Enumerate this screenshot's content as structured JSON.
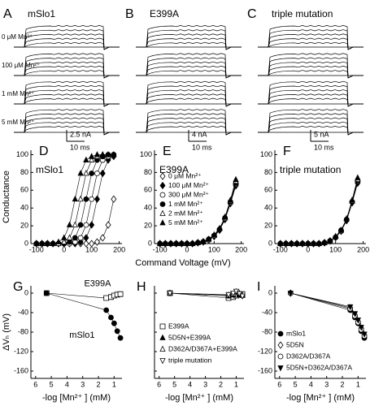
{
  "traces": {
    "panels": [
      {
        "panel": "A",
        "title": "mSlo1",
        "scale_current": "2.5 nA",
        "scale_time": "10 ms"
      },
      {
        "panel": "B",
        "title": "E399A",
        "scale_current": "4 nA",
        "scale_time": "10 ms"
      },
      {
        "panel": "C",
        "title": "triple mutation",
        "scale_current": "5 nA",
        "scale_time": "10 ms"
      }
    ],
    "conditions": [
      "0 μM Mn²⁺",
      "100 μM Mn²⁺",
      "1 mM Mn²⁺",
      "5 mM Mn²⁺"
    ]
  },
  "chart_data": [
    {
      "type": "scatter",
      "panel": "D",
      "title": "mSlo1",
      "y_label": "Conductance",
      "x": [
        -100,
        -80,
        -60,
        -40,
        -20,
        0,
        20,
        40,
        60,
        80,
        100,
        120,
        140,
        160,
        180
      ],
      "xlim": [
        -120,
        210
      ],
      "xticks": [
        -100,
        0,
        100,
        200
      ],
      "ylim": [
        0,
        105
      ],
      "yticks": [
        0,
        20,
        40,
        60,
        80,
        100
      ],
      "series": [
        {
          "marker": "diamond",
          "filled": false,
          "color": "#000",
          "values": [
            0,
            0,
            0,
            0,
            0,
            0,
            0,
            0,
            0,
            0,
            0,
            1.8,
            6.5,
            21,
            50
          ]
        },
        {
          "marker": "diamond",
          "filled": true,
          "color": "#000",
          "values": [
            0,
            0,
            0,
            0,
            0,
            0,
            0,
            0,
            1.8,
            6.5,
            21,
            50,
            79,
            94,
            98
          ]
        },
        {
          "marker": "circle",
          "filled": false,
          "color": "#000",
          "values": [
            0,
            0,
            0,
            0,
            0,
            0,
            0,
            1.8,
            6.5,
            21,
            50,
            79,
            94,
            98,
            100
          ]
        },
        {
          "marker": "circle",
          "filled": true,
          "color": "#000",
          "values": [
            0,
            0,
            0,
            0,
            0,
            0,
            1.8,
            6.5,
            21,
            50,
            79,
            94,
            98,
            100,
            100
          ]
        },
        {
          "marker": "triangle",
          "filled": false,
          "color": "#000",
          "values": [
            0,
            0,
            0,
            0,
            0,
            1.8,
            6.5,
            21,
            50,
            79,
            94,
            98,
            100,
            100,
            100
          ]
        },
        {
          "marker": "triangle",
          "filled": true,
          "color": "#000",
          "values": [
            0,
            0,
            0,
            0,
            1.8,
            6.5,
            21,
            50,
            79,
            94,
            98,
            100,
            100,
            100,
            100
          ]
        }
      ]
    },
    {
      "type": "scatter",
      "panel": "E",
      "title": "E399A",
      "x_label": "Command Voltage (mV)",
      "legend": true,
      "x": [
        -100,
        -80,
        -60,
        -40,
        -20,
        0,
        20,
        40,
        60,
        80,
        100,
        120,
        140,
        160,
        180
      ],
      "xlim": [
        -120,
        210
      ],
      "xticks": [
        -100,
        0,
        100,
        200
      ],
      "ylim": [
        0,
        105
      ],
      "yticks": [
        0,
        20,
        40,
        60,
        80,
        100
      ],
      "series": [
        {
          "name": "0 μM Mn²⁺",
          "marker": "diamond",
          "filled": false,
          "color": "#000",
          "values": [
            0,
            0,
            0,
            0,
            0,
            0,
            0,
            1,
            2,
            4,
            8,
            15,
            27,
            45,
            65
          ]
        },
        {
          "name": "100 μM Mn²⁺",
          "marker": "diamond",
          "filled": true,
          "color": "#000",
          "values": [
            0,
            0,
            0,
            0,
            0,
            0,
            0,
            1,
            2,
            4,
            8,
            16,
            28,
            46,
            66
          ]
        },
        {
          "name": "300 μM Mn²⁺",
          "marker": "circle",
          "filled": false,
          "color": "#000",
          "values": [
            0,
            0,
            0,
            0,
            0,
            0,
            0,
            1,
            2,
            4,
            9,
            16,
            28,
            46,
            67
          ]
        },
        {
          "name": "1 mM Mn²⁺",
          "marker": "circle",
          "filled": true,
          "color": "#000",
          "values": [
            0,
            0,
            0,
            0,
            0,
            0,
            0,
            1,
            2,
            5,
            9,
            16,
            29,
            47,
            68
          ]
        },
        {
          "name": "2 mM Mn²⁺",
          "marker": "triangle",
          "filled": false,
          "color": "#000",
          "values": [
            0,
            0,
            0,
            0,
            0,
            0,
            0,
            1,
            2,
            5,
            9,
            17,
            29,
            48,
            70
          ]
        },
        {
          "name": "5 mM Mn²⁺",
          "marker": "triangle",
          "filled": true,
          "color": "#000",
          "values": [
            0,
            0,
            0,
            0,
            0,
            0,
            0,
            1,
            2,
            5,
            10,
            17,
            30,
            49,
            72
          ]
        }
      ]
    },
    {
      "type": "scatter",
      "panel": "F",
      "title": "triple mutation",
      "x": [
        -100,
        -80,
        -60,
        -40,
        -20,
        0,
        20,
        40,
        60,
        80,
        100,
        120,
        140,
        160,
        180
      ],
      "xlim": [
        -120,
        210
      ],
      "xticks": [
        -100,
        0,
        100,
        200
      ],
      "ylim": [
        0,
        105
      ],
      "yticks": [
        0,
        20,
        40,
        60,
        80,
        100
      ],
      "series": [
        {
          "marker": "diamond",
          "filled": false,
          "color": "#000",
          "values": [
            0,
            0,
            0,
            0,
            0,
            0,
            0,
            0,
            1,
            3,
            7,
            14,
            26,
            46,
            68
          ]
        },
        {
          "marker": "diamond",
          "filled": true,
          "color": "#000",
          "values": [
            0,
            0,
            0,
            0,
            0,
            0,
            0,
            0,
            1,
            3,
            7,
            14,
            26,
            46,
            69
          ]
        },
        {
          "marker": "circle",
          "filled": false,
          "color": "#000",
          "values": [
            0,
            0,
            0,
            0,
            0,
            0,
            0,
            0,
            1,
            3,
            7,
            14,
            27,
            47,
            70
          ]
        },
        {
          "marker": "circle",
          "filled": true,
          "color": "#000",
          "values": [
            0,
            0,
            0,
            0,
            0,
            0,
            0,
            0,
            1,
            3,
            7,
            15,
            27,
            47,
            71
          ]
        },
        {
          "marker": "triangle",
          "filled": false,
          "color": "#000",
          "values": [
            0,
            0,
            0,
            0,
            0,
            0,
            0,
            0,
            1,
            3,
            8,
            15,
            28,
            48,
            72
          ]
        },
        {
          "marker": "triangle",
          "filled": true,
          "color": "#000",
          "values": [
            0,
            0,
            0,
            0,
            0,
            0,
            0,
            0,
            1,
            3,
            8,
            15,
            28,
            49,
            74
          ]
        }
      ]
    },
    {
      "type": "scatter",
      "panel": "G",
      "y_label": "ΔVₕ (mV)",
      "x_label": "-log [Mn²⁺ ] (mM)",
      "series_labels": true,
      "x": [
        5.3,
        1.5,
        1.2,
        1,
        0.8,
        0.6
      ],
      "xlim": [
        6.3,
        0.5
      ],
      "xticks": [
        6,
        5,
        4,
        3,
        2,
        1
      ],
      "ylim": [
        -175,
        15
      ],
      "yticks": [
        0,
        -40,
        -80,
        -120,
        -160
      ],
      "series": [
        {
          "name": "E399A",
          "marker": "square",
          "filled": false,
          "color": "#000",
          "values": [
            0,
            -10,
            -8,
            -5,
            -3,
            -2
          ]
        },
        {
          "name": "mSlo1",
          "marker": "circle",
          "filled": true,
          "color": "#000",
          "values": [
            0,
            -35,
            -50,
            -62,
            -78,
            -92
          ]
        }
      ]
    },
    {
      "type": "scatter",
      "panel": "H",
      "x_label": "-log [Mn²⁺ ] (mM)",
      "legend": true,
      "ytick_labels": false,
      "x": [
        5.3,
        1.5,
        1.2,
        1,
        0.8,
        0.6
      ],
      "xlim": [
        6.3,
        0.5
      ],
      "xticks": [
        6,
        5,
        4,
        3,
        2,
        1
      ],
      "ylim": [
        -175,
        15
      ],
      "yticks": [
        0,
        -40,
        -80,
        -120,
        -160
      ],
      "series": [
        {
          "name": "E399A",
          "marker": "square",
          "filled": false,
          "color": "#000",
          "values": [
            0,
            -10,
            -8,
            -5,
            -3,
            -2
          ]
        },
        {
          "name": "5D5N+E399A",
          "marker": "triangle",
          "filled": true,
          "color": "#000",
          "values": [
            0,
            -6,
            -4,
            2,
            -3,
            -5
          ]
        },
        {
          "name": "D362A/D367A+E399A",
          "marker": "triangle",
          "filled": false,
          "color": "#000",
          "values": [
            0,
            -4,
            -2,
            3,
            0,
            -4
          ]
        },
        {
          "name": "triple mutation",
          "marker": "triangle-down",
          "filled": false,
          "color": "#000",
          "values": [
            0,
            -3,
            0,
            4,
            -1,
            -6
          ]
        }
      ]
    },
    {
      "type": "scatter",
      "panel": "I",
      "x_label": "-log [Mn²⁺ ] (mM)",
      "legend": true,
      "x": [
        5.3,
        1.5,
        1.2,
        1,
        0.8,
        0.6
      ],
      "xlim": [
        6.3,
        0.5
      ],
      "xticks": [
        6,
        5,
        4,
        3,
        2,
        1
      ],
      "ylim": [
        -175,
        15
      ],
      "yticks": [
        0,
        -40,
        -80,
        -120,
        -160
      ],
      "series": [
        {
          "name": "mSlo1",
          "marker": "circle",
          "filled": true,
          "color": "#000",
          "values": [
            0,
            -35,
            -50,
            -62,
            -78,
            -92
          ]
        },
        {
          "name": "5D5N",
          "marker": "diamond",
          "filled": false,
          "color": "#000",
          "values": [
            0,
            -30,
            -45,
            -58,
            -72,
            -86
          ]
        },
        {
          "name": "D362A/D367A",
          "marker": "circle",
          "filled": false,
          "color": "#000",
          "values": [
            0,
            -32,
            -47,
            -60,
            -75,
            -88
          ]
        },
        {
          "name": "5D5N+D362A/D367A",
          "marker": "triangle-down",
          "filled": true,
          "color": "#000",
          "values": [
            0,
            -28,
            -42,
            -55,
            -70,
            -84
          ]
        }
      ]
    }
  ]
}
